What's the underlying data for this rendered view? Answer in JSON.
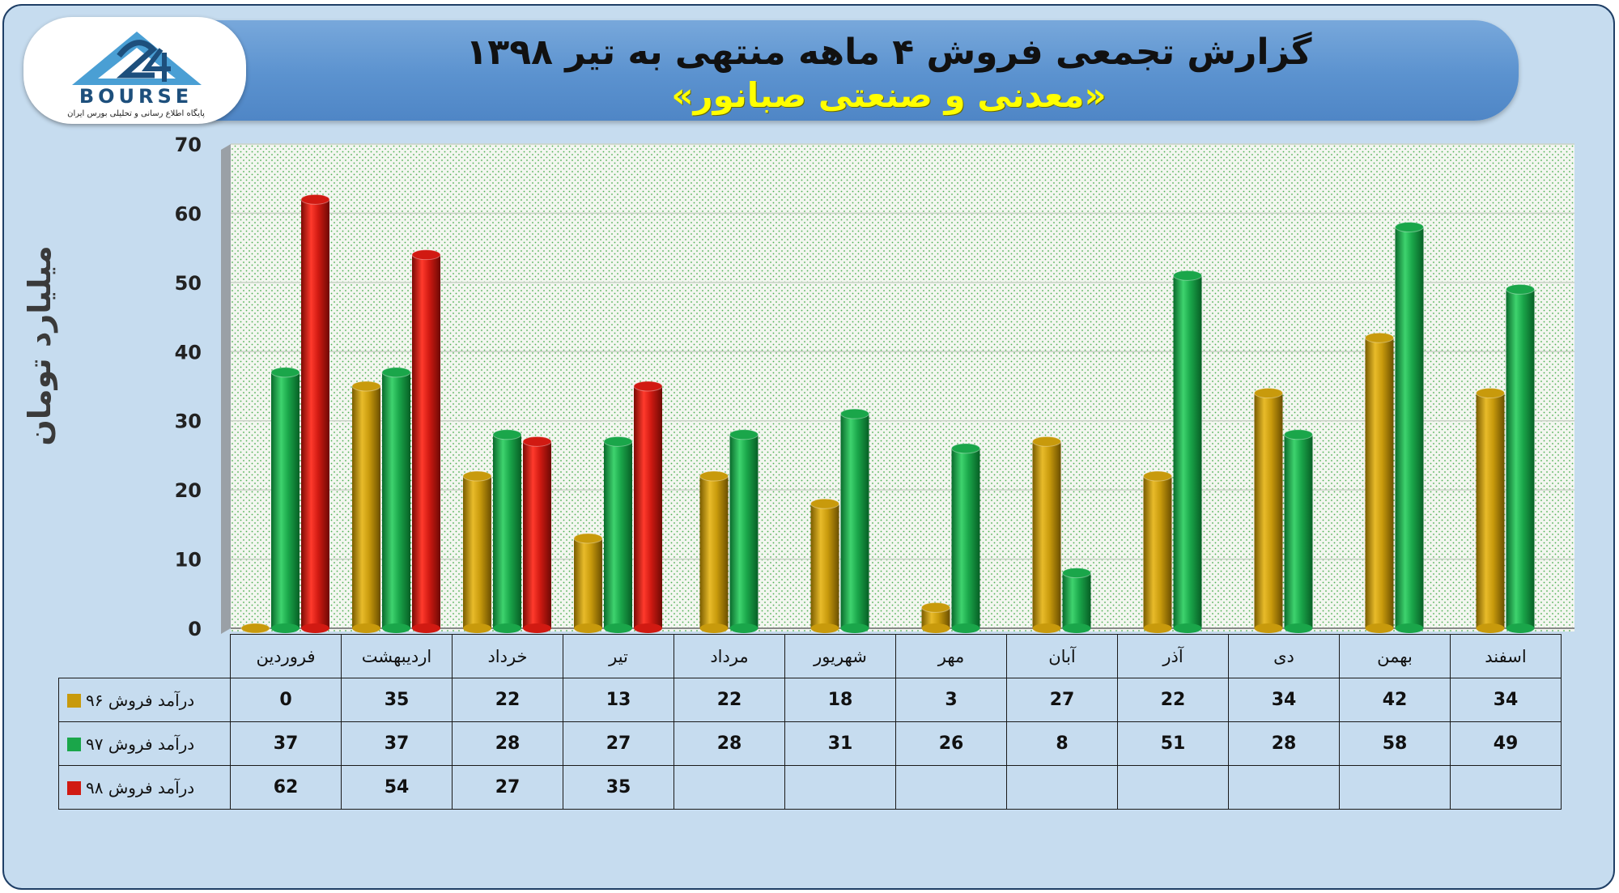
{
  "chart_data": {
    "type": "bar",
    "title": "گزارش تجمعی فروش ۴ ماهه منتهی به تیر ۱۳۹۸",
    "subtitle": "«معدنی و صنعتی صبانور»",
    "ylabel": "میلیارد تومان",
    "ylim": [
      0,
      70
    ],
    "yticks": [
      "0",
      "10",
      "20",
      "30",
      "40",
      "50",
      "60",
      "70"
    ],
    "categories": [
      "فروردین",
      "اردیبهشت",
      "خرداد",
      "تیر",
      "مرداد",
      "شهریور",
      "مهر",
      "آبان",
      "آذر",
      "دی",
      "بهمن",
      "اسفند"
    ],
    "series": [
      {
        "name": "درآمد فروش ۹۶",
        "color": "#c89a0c",
        "values": [
          0,
          35,
          22,
          13,
          22,
          18,
          3,
          27,
          22,
          34,
          42,
          34
        ]
      },
      {
        "name": "درآمد فروش ۹۷",
        "color": "#1aa64a",
        "values": [
          37,
          37,
          28,
          27,
          28,
          31,
          26,
          8,
          51,
          28,
          58,
          49
        ]
      },
      {
        "name": "درآمد فروش ۹۸",
        "color": "#d11a12",
        "values": [
          62,
          54,
          27,
          35,
          null,
          null,
          null,
          null,
          null,
          null,
          null,
          null
        ]
      }
    ],
    "grid": true,
    "legend": "data-table"
  },
  "logo": {
    "text": "BOURSE",
    "subtitle": "پایگاه اطلاع رسانی و تحلیلی بورس ایران"
  },
  "table_labels": [
    "0",
    "35",
    "22",
    "13",
    "22",
    "18",
    "3",
    "27",
    "22",
    "34",
    "42",
    "34"
  ],
  "colors": {
    "background": "#c6dcef",
    "banner": "#5b92cf",
    "title": "#111111",
    "subtitle": "#ffff00"
  }
}
